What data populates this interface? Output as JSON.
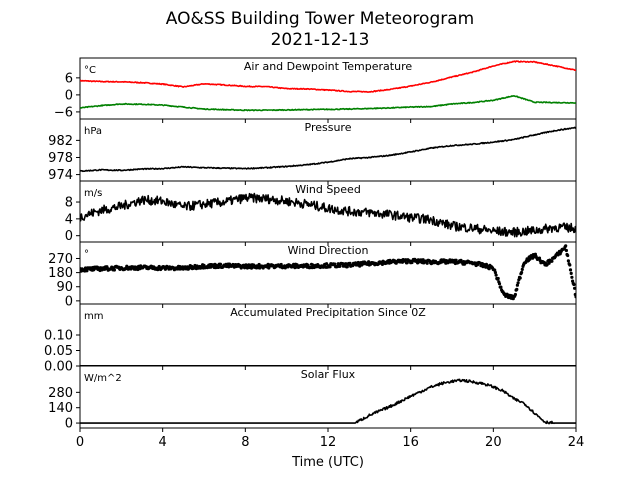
{
  "figure": {
    "title_line1": "AO&SS Building Tower Meteorogram",
    "title_line2": "2021-12-13",
    "xlabel": "Time (UTC)"
  },
  "chart_data": [
    {
      "type": "line",
      "title": "Air and Dewpoint Temperature",
      "unit_label": "°C",
      "xlim": [
        0,
        24
      ],
      "ylim": [
        -8.5,
        13
      ],
      "yticks": [
        6,
        0,
        -6
      ],
      "ytick_labels": [
        "6",
        "0",
        "−6"
      ],
      "series": [
        {
          "color": "#ff0000",
          "x": [
            0,
            1,
            2,
            3,
            4,
            5,
            6,
            7,
            8,
            9,
            10,
            11,
            12,
            13,
            14,
            15,
            16,
            17,
            18,
            19,
            20,
            21,
            22,
            23,
            24
          ],
          "values": [
            5.0,
            4.7,
            4.6,
            4.3,
            3.8,
            2.8,
            3.9,
            3.5,
            3.0,
            2.9,
            2.2,
            2.1,
            1.7,
            1.2,
            1.1,
            1.9,
            3.1,
            4.5,
            6.3,
            8.0,
            10.2,
            11.8,
            11.6,
            10.2,
            8.7
          ]
        },
        {
          "color": "#008000",
          "x": [
            0,
            1,
            2,
            3,
            4,
            5,
            6,
            7,
            8,
            9,
            10,
            11,
            12,
            13,
            14,
            15,
            16,
            17,
            18,
            19,
            20,
            21,
            22,
            23,
            24
          ],
          "values": [
            -4.6,
            -3.8,
            -3.2,
            -3.3,
            -3.6,
            -4.3,
            -5.0,
            -5.2,
            -5.4,
            -5.4,
            -5.3,
            -5.2,
            -5.1,
            -5.0,
            -4.8,
            -4.6,
            -4.3,
            -4.1,
            -3.2,
            -2.7,
            -1.9,
            -0.3,
            -2.6,
            -2.7,
            -2.8
          ]
        }
      ]
    },
    {
      "type": "line",
      "title": "Pressure",
      "unit_label": "hPa",
      "xlim": [
        0,
        24
      ],
      "ylim": [
        972.5,
        987
      ],
      "yticks": [
        982,
        978,
        974
      ],
      "ytick_labels": [
        "982",
        "978",
        "974"
      ],
      "series": [
        {
          "color": "#000000",
          "x": [
            0,
            1,
            2,
            3,
            4,
            5,
            6,
            7,
            8,
            9,
            10,
            11,
            12,
            13,
            14,
            15,
            16,
            17,
            18,
            19,
            20,
            21,
            22,
            23,
            24
          ],
          "values": [
            974.8,
            975.1,
            975.0,
            975.3,
            975.4,
            975.8,
            975.6,
            975.5,
            975.4,
            975.6,
            975.9,
            976.3,
            976.9,
            977.7,
            978.0,
            978.5,
            979.3,
            980.2,
            980.8,
            981.1,
            981.6,
            982.2,
            983.3,
            984.3,
            985.0
          ]
        }
      ]
    },
    {
      "type": "line",
      "title": "Wind Speed",
      "unit_label": "m/s",
      "xlim": [
        0,
        24
      ],
      "ylim": [
        -1.5,
        13
      ],
      "yticks": [
        8,
        4,
        0
      ],
      "ytick_labels": [
        "8",
        "4",
        "0"
      ],
      "series": [
        {
          "color": "#000000",
          "x": [
            0,
            1,
            2,
            3,
            4,
            5,
            6,
            7,
            8,
            9,
            10,
            11,
            12,
            13,
            14,
            15,
            16,
            17,
            18,
            19,
            20,
            21,
            22,
            23,
            24
          ],
          "values": [
            4.5,
            6.0,
            7.0,
            8.5,
            8.2,
            6.8,
            7.5,
            8.0,
            9.0,
            8.8,
            8.2,
            7.5,
            6.5,
            5.8,
            5.5,
            5.0,
            4.3,
            3.8,
            2.3,
            1.8,
            1.1,
            0.8,
            1.2,
            2.0,
            1.8
          ]
        }
      ]
    },
    {
      "type": "scatter",
      "title": "Wind Direction",
      "unit_label": "°",
      "xlim": [
        0,
        24
      ],
      "ylim": [
        -20,
        375
      ],
      "yticks": [
        270,
        180,
        90,
        0
      ],
      "ytick_labels": [
        "270",
        "180",
        "90",
        "0"
      ],
      "series": [
        {
          "color": "#000000",
          "x": [
            0,
            1,
            2,
            3,
            4,
            5,
            6,
            7,
            8,
            9,
            10,
            11,
            12,
            13,
            14,
            15,
            16,
            17,
            18,
            19,
            20,
            20.5,
            21,
            21.5,
            22,
            22.5,
            23,
            23.5,
            24
          ],
          "values": [
            200,
            205,
            210,
            212,
            210,
            208,
            222,
            224,
            220,
            221,
            222,
            222,
            226,
            228,
            238,
            248,
            255,
            248,
            250,
            242,
            210,
            40,
            18,
            250,
            290,
            230,
            280,
            345,
            30
          ]
        }
      ]
    },
    {
      "type": "line",
      "title": "Accumulated Precipitation Since 0Z",
      "unit_label": "mm",
      "xlim": [
        0,
        24
      ],
      "ylim": [
        0,
        0.2
      ],
      "yticks": [
        0.1,
        0.05,
        0.0
      ],
      "ytick_labels": [
        "0.10",
        "0.05",
        "0.00"
      ],
      "series": [
        {
          "color": "#000000",
          "x": [
            0,
            24
          ],
          "values": [
            0,
            0
          ]
        }
      ]
    },
    {
      "type": "line",
      "title": "Solar Flux",
      "unit_label": "W/m^2",
      "xlim": [
        0,
        24
      ],
      "ylim": [
        -45,
        520
      ],
      "yticks": [
        280,
        140,
        0
      ],
      "ytick_labels": [
        "280",
        "140",
        "0"
      ],
      "series": [
        {
          "color": "#000000",
          "x": [
            0,
            13.3,
            14,
            15,
            16,
            17,
            17.5,
            18,
            18.5,
            19,
            19.5,
            20,
            20.5,
            21,
            21.5,
            22,
            22.5,
            23,
            24
          ],
          "values": [
            0,
            0,
            70,
            150,
            245,
            330,
            360,
            380,
            390,
            375,
            360,
            330,
            290,
            220,
            180,
            90,
            10,
            0,
            0
          ]
        }
      ]
    }
  ],
  "xaxis": {
    "ticks": [
      0,
      4,
      8,
      12,
      16,
      20,
      24
    ],
    "tick_labels": [
      "0",
      "4",
      "8",
      "12",
      "16",
      "20",
      "24"
    ]
  }
}
